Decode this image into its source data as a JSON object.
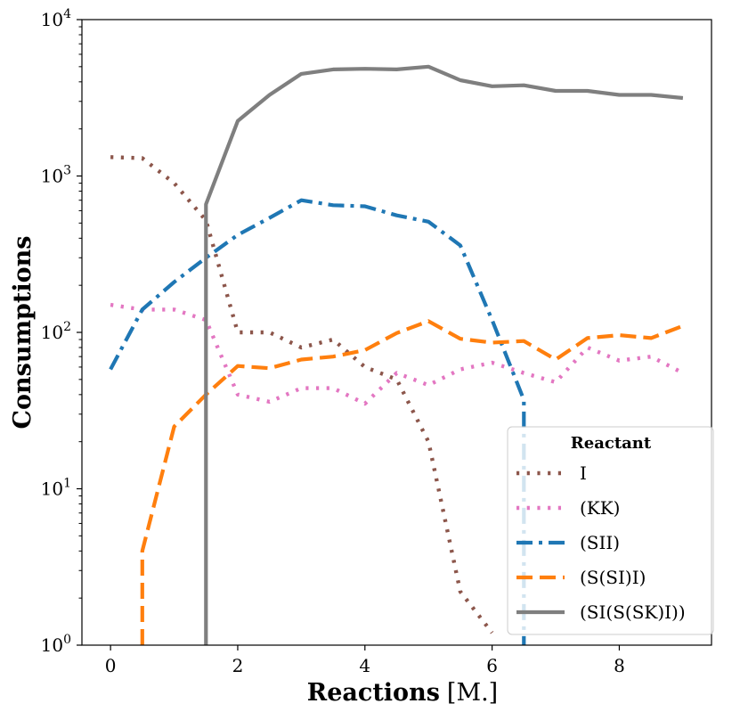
{
  "chart_data": {
    "type": "line",
    "xlabel": "Reactions",
    "xlabel_unit": "[M.]",
    "ylabel": "Consumptions",
    "yscale": "log",
    "xlim": [
      -0.45,
      9.45
    ],
    "ylim": [
      1,
      10000
    ],
    "x_ticks": [
      0,
      2,
      4,
      6,
      8
    ],
    "x_tick_labels": [
      "0",
      "2",
      "4",
      "6",
      "8"
    ],
    "y_ticks": [
      1,
      10,
      100,
      1000,
      10000
    ],
    "y_tick_labels": [
      {
        "base": "10",
        "exp": "0"
      },
      {
        "base": "10",
        "exp": "1"
      },
      {
        "base": "10",
        "exp": "2"
      },
      {
        "base": "10",
        "exp": "3"
      },
      {
        "base": "10",
        "exp": "4"
      }
    ],
    "grid": false,
    "legend": {
      "title": "Reactant",
      "position": "lower-right"
    },
    "series": [
      {
        "name": "I",
        "color": "#8c564b",
        "style": "dotted",
        "points": [
          [
            0,
            1320
          ],
          [
            0.5,
            1300
          ],
          [
            1,
            900
          ],
          [
            1.5,
            520
          ],
          [
            2,
            100
          ],
          [
            2.5,
            100
          ],
          [
            3,
            80
          ],
          [
            3.5,
            90
          ],
          [
            4,
            60
          ],
          [
            4.5,
            50
          ],
          [
            5,
            20
          ],
          [
            5.5,
            2.2
          ],
          [
            6,
            1.2
          ]
        ]
      },
      {
        "name": "(KK)",
        "color": "#e377c2",
        "style": "dotted",
        "points": [
          [
            0,
            150
          ],
          [
            0.5,
            140
          ],
          [
            1,
            140
          ],
          [
            1.5,
            120
          ],
          [
            2,
            40
          ],
          [
            2.5,
            36
          ],
          [
            3,
            44
          ],
          [
            3.5,
            44
          ],
          [
            4,
            35
          ],
          [
            4.5,
            55
          ],
          [
            5,
            46
          ],
          [
            5.5,
            58
          ],
          [
            6,
            64
          ],
          [
            6.5,
            55
          ],
          [
            7,
            48
          ],
          [
            7.5,
            80
          ],
          [
            8,
            66
          ],
          [
            8.5,
            70
          ],
          [
            9,
            55
          ]
        ]
      },
      {
        "name": "(SII)",
        "color": "#1f77b4",
        "style": "dashdot",
        "points": [
          [
            0,
            58
          ],
          [
            0.5,
            140
          ],
          [
            1,
            210
          ],
          [
            1.5,
            300
          ],
          [
            2,
            420
          ],
          [
            2.5,
            540
          ],
          [
            3,
            700
          ],
          [
            3.5,
            650
          ],
          [
            4,
            640
          ],
          [
            4.5,
            560
          ],
          [
            5,
            510
          ],
          [
            5.5,
            360
          ],
          [
            6,
            120
          ],
          [
            6.5,
            37
          ],
          [
            6.5,
            1
          ]
        ]
      },
      {
        "name": "(S(SI)I)",
        "color": "#ff7f0e",
        "style": "dashed",
        "points": [
          [
            0.5,
            1
          ],
          [
            0.5,
            4
          ],
          [
            1,
            25
          ],
          [
            1.5,
            40
          ],
          [
            2,
            61
          ],
          [
            2.5,
            59
          ],
          [
            3,
            67
          ],
          [
            3.5,
            70
          ],
          [
            4,
            77
          ],
          [
            4.5,
            99
          ],
          [
            5,
            118
          ],
          [
            5.5,
            91
          ],
          [
            6,
            86
          ],
          [
            6.5,
            88
          ],
          [
            7,
            67
          ],
          [
            7.5,
            92
          ],
          [
            8,
            96
          ],
          [
            8.5,
            92
          ],
          [
            9,
            110
          ]
        ]
      },
      {
        "name": "(SI(S(SK)I))",
        "color": "#7f7f7f",
        "style": "solid",
        "points": [
          [
            1.5,
            1
          ],
          [
            1.5,
            660
          ],
          [
            2,
            2250
          ],
          [
            2.5,
            3300
          ],
          [
            3,
            4500
          ],
          [
            3.5,
            4800
          ],
          [
            4,
            4850
          ],
          [
            4.5,
            4800
          ],
          [
            5,
            5000
          ],
          [
            5.5,
            4100
          ],
          [
            6,
            3750
          ],
          [
            6.5,
            3800
          ],
          [
            7,
            3500
          ],
          [
            7.5,
            3500
          ],
          [
            8,
            3300
          ],
          [
            8.5,
            3300
          ],
          [
            9,
            3150
          ]
        ]
      }
    ]
  }
}
